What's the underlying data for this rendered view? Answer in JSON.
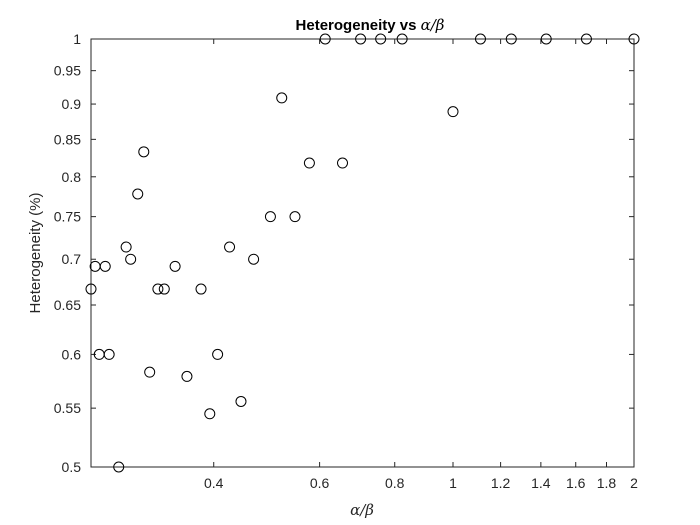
{
  "chart_data": {
    "type": "scatter",
    "title": "Heterogeneity vs ",
    "title_math": "α/β",
    "xlabel": "α/β",
    "ylabel": "Heterogeneity (%)",
    "xscale": "log",
    "yscale": "log",
    "xlim": [
      0.25,
      2
    ],
    "ylim": [
      0.5,
      1
    ],
    "xticks": [
      {
        "value": 0.4,
        "label": "0.4"
      },
      {
        "value": 0.6,
        "label": "0.6"
      },
      {
        "value": 0.8,
        "label": "0.8"
      },
      {
        "value": 1.0,
        "label": "1"
      },
      {
        "value": 1.2,
        "label": "1.2"
      },
      {
        "value": 1.4,
        "label": "1.4"
      },
      {
        "value": 1.6,
        "label": "1.6"
      },
      {
        "value": 1.8,
        "label": "1.8"
      },
      {
        "value": 2.0,
        "label": "2"
      }
    ],
    "yticks": [
      {
        "value": 0.5,
        "label": "0.5"
      },
      {
        "value": 0.55,
        "label": "0.55"
      },
      {
        "value": 0.6,
        "label": "0.6"
      },
      {
        "value": 0.65,
        "label": "0.65"
      },
      {
        "value": 0.7,
        "label": "0.7"
      },
      {
        "value": 0.75,
        "label": "0.75"
      },
      {
        "value": 0.8,
        "label": "0.8"
      },
      {
        "value": 0.85,
        "label": "0.85"
      },
      {
        "value": 0.9,
        "label": "0.9"
      },
      {
        "value": 0.95,
        "label": "0.95"
      },
      {
        "value": 1.0,
        "label": "1"
      }
    ],
    "grid": false,
    "box": true,
    "marker": "open-circle",
    "colors": {
      "marker": "#000000",
      "axes": "#262626",
      "background": "#ffffff"
    },
    "points": [
      {
        "x": 0.25,
        "y": 0.667
      },
      {
        "x": 0.254,
        "y": 0.692
      },
      {
        "x": 0.258,
        "y": 0.6
      },
      {
        "x": 0.264,
        "y": 0.692
      },
      {
        "x": 0.268,
        "y": 0.6
      },
      {
        "x": 0.278,
        "y": 0.5
      },
      {
        "x": 0.286,
        "y": 0.714
      },
      {
        "x": 0.291,
        "y": 0.7
      },
      {
        "x": 0.299,
        "y": 0.778
      },
      {
        "x": 0.306,
        "y": 0.833
      },
      {
        "x": 0.313,
        "y": 0.583
      },
      {
        "x": 0.323,
        "y": 0.667
      },
      {
        "x": 0.331,
        "y": 0.667
      },
      {
        "x": 0.345,
        "y": 0.692
      },
      {
        "x": 0.361,
        "y": 0.579
      },
      {
        "x": 0.381,
        "y": 0.667
      },
      {
        "x": 0.394,
        "y": 0.545
      },
      {
        "x": 0.406,
        "y": 0.6
      },
      {
        "x": 0.425,
        "y": 0.714
      },
      {
        "x": 0.444,
        "y": 0.556
      },
      {
        "x": 0.466,
        "y": 0.7
      },
      {
        "x": 0.497,
        "y": 0.75
      },
      {
        "x": 0.519,
        "y": 0.909
      },
      {
        "x": 0.546,
        "y": 0.75
      },
      {
        "x": 0.577,
        "y": 0.818
      },
      {
        "x": 0.613,
        "y": 1.0
      },
      {
        "x": 0.655,
        "y": 0.818
      },
      {
        "x": 0.702,
        "y": 1.0
      },
      {
        "x": 0.758,
        "y": 1.0
      },
      {
        "x": 0.823,
        "y": 1.0
      },
      {
        "x": 1.0,
        "y": 0.889
      },
      {
        "x": 1.111,
        "y": 1.0
      },
      {
        "x": 1.25,
        "y": 1.0
      },
      {
        "x": 1.429,
        "y": 1.0
      },
      {
        "x": 1.667,
        "y": 1.0
      },
      {
        "x": 2.0,
        "y": 1.0
      }
    ]
  }
}
